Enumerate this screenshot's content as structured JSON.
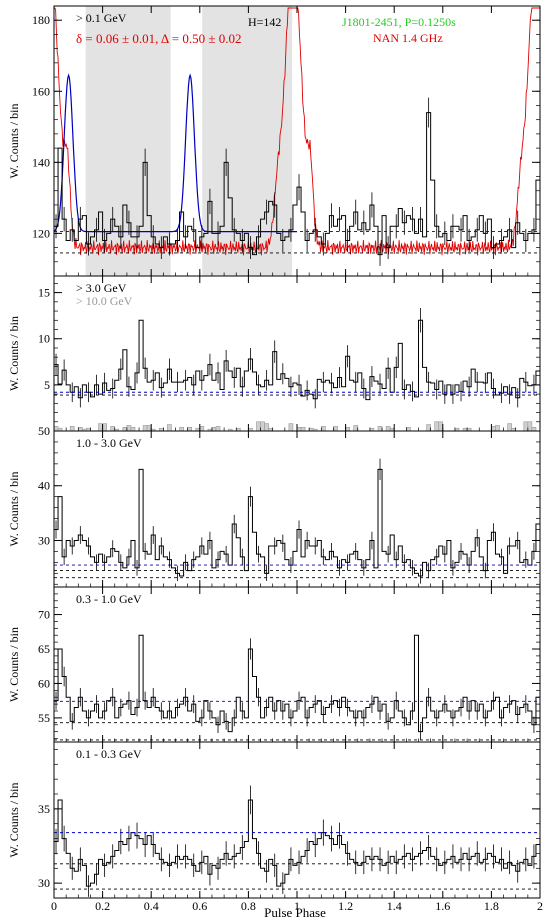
{
  "figure": {
    "xlabel": "Pulse Phase",
    "ylabel": "W. Counts / bin",
    "x_ticks": [
      0,
      0.2,
      0.4,
      0.6,
      0.8,
      1,
      1.2,
      1.4,
      1.6,
      1.8,
      2
    ],
    "x_tick_labels": [
      "0",
      "0.2",
      "0.4",
      "0.6",
      "0.8",
      "1",
      "1.2",
      "1.4",
      "1.6",
      "1.8",
      "2"
    ]
  },
  "colors": {
    "histogram": "#000000",
    "radio": "#e00000",
    "gauss": "#0000c0",
    "bg_dashed": "#0000c0",
    "gray_region": "#e3e3e3",
    "gray_hist": "#999999",
    "title_green": "#22cc22",
    "title_red": "#e00000"
  },
  "chart_data": [
    {
      "type": "bar",
      "panel": "> 0.1 GeV",
      "ylim": [
        108,
        184
      ],
      "yticks": [
        120,
        140,
        160,
        180
      ],
      "labels": {
        "energy": "> 0.1 GeV",
        "htest": "H=142",
        "psr": "J1801-2451, P=0.1250s",
        "radio": "NAN 1.4 GHz",
        "fit": "δ = 0.06 ± 0.01, Δ = 0.50 ± 0.02"
      },
      "off_pulse_regions": [
        [
          0.13,
          0.48
        ],
        [
          0.61,
          0.98
        ]
      ],
      "bg_lines": [
        120.5,
        114.5
      ],
      "counts": [
        122,
        144,
        124,
        118,
        121,
        118,
        124,
        125,
        117,
        119,
        121,
        126,
        118,
        120,
        124,
        122,
        119,
        128,
        123,
        119,
        119,
        122,
        140,
        125,
        119,
        117,
        116,
        119,
        117,
        117,
        118,
        126,
        119,
        122,
        121,
        116,
        119,
        120,
        129,
        120,
        120,
        122,
        140,
        130,
        121,
        120,
        118,
        120,
        116,
        114,
        119,
        124,
        126,
        129,
        128,
        120,
        118,
        119,
        121,
        128,
        133,
        126,
        118,
        120,
        121,
        119,
        117,
        120,
        125,
        122,
        124,
        125,
        118,
        122,
        126,
        121,
        123,
        121,
        128,
        122,
        114,
        125,
        116,
        122,
        122,
        127,
        123,
        125,
        124,
        120,
        124,
        119,
        154,
        135,
        122,
        119,
        120,
        118,
        122,
        122,
        121,
        125,
        118,
        119,
        121,
        125,
        120,
        124,
        116,
        117,
        118,
        119,
        121,
        116,
        123,
        120,
        118,
        120,
        121,
        135
      ]
    },
    {
      "type": "bar",
      "panel": "> 3.0 GeV",
      "ylim": [
        0,
        16.8
      ],
      "yticks": [
        5,
        10,
        15
      ],
      "labels": {
        "energy": "> 3.0 GeV",
        "energy2": "> 10.0 GeV"
      },
      "bg_lines": [
        4.2,
        3.9
      ],
      "counts": [
        7.2,
        5.1,
        6.6,
        5.0,
        4.2,
        4.8,
        3.6,
        5.0,
        4.2,
        3.7,
        5.0,
        4.0,
        5.2,
        4.4,
        4.6,
        5.5,
        6.7,
        8.8,
        4.8,
        4.5,
        6.3,
        12.0,
        6.8,
        5.3,
        5.5,
        6.3,
        4.7,
        5.2,
        6.7,
        5.3,
        5.3,
        5.3,
        5.5,
        5.8,
        5.0,
        6.5,
        5.5,
        6.0,
        7.2,
        5.5,
        6.3,
        4.5,
        7.6,
        6.5,
        5.8,
        6.8,
        4.8,
        6.5,
        7.8,
        6.4,
        5.0,
        4.8,
        5.5,
        5.0,
        8.6,
        5.6,
        6.2,
        5.7,
        4.8,
        5.2,
        5.0,
        3.8,
        4.4,
        4.0,
        3.5,
        5.6,
        5.3,
        5.5,
        5.2,
        4.7,
        5.8,
        4.8,
        8.1,
        5.5,
        5.3,
        6.3,
        4.6,
        3.4,
        5.9,
        5.4,
        5.1,
        4.6,
        6.8,
        4.2,
        6.9,
        9.5,
        4.5,
        5.0,
        4.3,
        3.7,
        12.0,
        6.9,
        5.3,
        5.2,
        4.5,
        5.4,
        4.0,
        5.0,
        4.0,
        5.0,
        4.3,
        5.4,
        4.8,
        6.7,
        5.3,
        5.3,
        5.2,
        6.3,
        4.6,
        3.9,
        4.1,
        4.8,
        4.0,
        4.7,
        3.6,
        5.7,
        5.3,
        4.9,
        5.0,
        6.5
      ],
      "gray_counts": [
        0.5,
        0.3,
        0.0,
        0.0,
        0.5,
        0.0,
        0.4,
        0.2,
        0.3,
        0.0,
        0.0,
        0.8,
        0.8,
        0.0,
        0.5,
        0.2,
        0.0,
        0.4,
        0.6,
        0.4,
        0.0,
        0.0,
        0.6,
        0.6,
        0.2,
        0.0,
        0.3,
        0.0,
        0.7,
        0.0,
        0.0,
        0.4,
        0.0,
        0.4,
        0.0,
        0.3,
        0.5,
        0.0,
        0.2,
        0.4,
        0.5,
        0.0,
        0.0,
        0.2,
        0.0,
        0.3,
        0.0,
        0.0,
        0.3,
        0.0,
        1.0,
        1.0,
        0.8,
        0.3,
        0.0,
        0.0,
        0.0,
        0.0,
        0.8,
        0.0,
        0.4,
        0.4,
        0.0,
        0.3,
        0.2,
        0.0,
        0.5,
        0.0,
        0.0,
        0.5,
        0.0,
        0.0,
        0.4,
        0.0,
        0.6,
        0.0,
        0.0,
        0.0,
        0.3,
        0.0,
        0.5,
        0.0,
        0.5,
        0.3,
        0.0,
        0.0,
        0.0,
        0.4,
        0.0,
        0.0,
        0.0,
        0.0,
        0.7,
        0.0,
        1.0,
        1.0,
        0.0,
        0.0,
        0.0,
        0.3,
        0.0,
        0.3,
        0.3,
        0.0,
        0.0,
        0.0,
        0.0,
        0.0,
        0.5,
        0.6,
        0.0,
        0.0,
        0.8,
        0.3,
        0.0,
        0.0,
        1.0,
        1.0,
        0.4,
        0.0
      ]
    },
    {
      "type": "bar",
      "panel": "1.0 - 3.0 GeV",
      "ylim": [
        21.5,
        50
      ],
      "yticks": [
        30,
        40,
        50
      ],
      "labels": {
        "energy": "1.0 - 3.0 GeV"
      },
      "bg_lines": [
        25.5,
        24.5,
        23.2
      ],
      "counts": [
        32,
        38,
        27,
        30,
        29,
        30,
        31,
        30,
        29,
        27,
        26,
        27.5,
        26,
        27,
        28.5,
        28,
        26,
        25,
        27,
        30,
        25,
        43,
        28,
        27.5,
        31,
        26.5,
        29,
        27,
        26.5,
        25,
        24,
        23.5,
        26,
        24.5,
        26.5,
        27,
        29,
        27.5,
        30,
        25,
        26.5,
        28,
        27.5,
        25.5,
        33,
        30.5,
        27,
        24.5,
        38,
        31.5,
        27.5,
        27,
        24,
        29,
        29,
        30,
        29.5,
        26.5,
        25.5,
        28,
        32,
        27,
        30,
        29,
        29,
        30,
        27,
        26.5,
        28,
        27,
        25,
        26.5,
        26,
        27.5,
        28,
        26.5,
        25,
        26.5,
        30,
        25,
        43,
        28,
        27.5,
        31,
        26.5,
        29,
        26,
        26.5,
        25,
        24,
        23.5,
        26,
        24.5,
        26.5,
        27,
        29,
        27.5,
        30,
        25,
        26,
        28,
        27.5,
        25.5,
        28,
        30.5,
        27,
        24.5,
        30,
        31.5,
        27.5,
        27,
        24,
        29,
        29,
        30,
        26,
        26.5,
        25.5,
        28,
        33
      ]
    },
    {
      "type": "bar",
      "panel": "0.3 - 1.0 GeV",
      "ylim": [
        51.5,
        74
      ],
      "yticks": [
        55,
        60,
        65,
        70
      ],
      "labels": {
        "energy": "0.3 - 1.0 GeV"
      },
      "bg_lines": [
        57.4,
        54.3,
        51.8
      ],
      "counts": [
        57.5,
        65,
        61,
        58,
        54.5,
        56.5,
        58,
        56,
        55,
        56,
        57,
        55,
        56,
        57.5,
        58,
        55,
        56.5,
        57,
        57.5,
        55.5,
        56.5,
        67,
        57.5,
        56.5,
        58,
        56.5,
        56,
        55,
        56,
        55,
        56.5,
        57,
        58,
        56,
        57,
        54.5,
        55,
        57.5,
        56,
        55,
        54,
        56,
        54.5,
        53,
        55,
        58,
        56,
        55,
        65,
        61,
        58,
        55,
        56.5,
        58,
        56,
        57.5,
        56,
        57,
        55,
        56,
        57.5,
        58,
        55,
        56.5,
        57,
        57.5,
        55.5,
        56.5,
        57,
        57.5,
        56.5,
        58,
        56.5,
        56,
        55,
        56,
        55,
        56.5,
        57,
        58,
        56,
        57,
        54.5,
        55,
        57.5,
        56,
        55,
        54,
        56,
        67,
        53,
        55,
        58,
        56,
        55,
        56,
        57,
        56,
        55,
        56,
        56.5,
        58,
        56,
        57.5,
        56,
        57,
        55,
        56,
        57.5,
        58,
        55,
        56.5,
        57,
        57.5,
        55.5,
        56.5,
        57,
        56,
        54,
        58
      ]
    },
    {
      "type": "bar",
      "panel": "0.1 - 0.3 GeV",
      "ylim": [
        29,
        39.5
      ],
      "yticks": [
        30,
        35
      ],
      "labels": {
        "energy": "0.1 - 0.3 GeV"
      },
      "bg_lines": [
        33.4,
        31.3,
        29.6
      ],
      "counts": [
        32.8,
        35.6,
        33,
        32,
        31,
        30.8,
        31.6,
        31.2,
        29.8,
        30,
        30.6,
        31.6,
        31.2,
        31.4,
        31.8,
        32.2,
        32.8,
        32.6,
        33,
        33.4,
        33.2,
        33,
        32.6,
        33.2,
        32.6,
        32,
        31.6,
        31.4,
        31.2,
        31.4,
        31.8,
        31.6,
        31.8,
        31.6,
        31.2,
        30.8,
        31.4,
        31.8,
        30.6,
        31.2,
        31,
        31.6,
        32,
        31.6,
        31.8,
        32,
        32.4,
        32.8,
        35.6,
        33,
        32,
        31,
        30.8,
        31.6,
        31.2,
        29.8,
        30,
        30.6,
        31.6,
        31.2,
        31.4,
        31.8,
        32.2,
        32.8,
        32.6,
        33,
        33.4,
        33.2,
        33,
        32.6,
        33.2,
        32.6,
        32,
        31.6,
        31.4,
        31.2,
        31.4,
        31.8,
        31.6,
        31.8,
        31.6,
        31.2,
        31.4,
        31.8,
        31.4,
        31.6,
        31.8,
        32,
        31.6,
        31.8,
        32,
        32.2,
        32.4,
        31.8,
        31.6,
        31.2,
        31.4,
        31.6,
        31.8,
        31.4,
        31.6,
        32,
        31.6,
        31.8,
        32,
        31.4,
        31.6,
        32,
        31.8,
        31.4,
        31.6,
        31,
        31.4,
        31.2,
        30.8,
        31.4,
        31.6,
        31.2,
        31.8,
        32.6
      ]
    }
  ]
}
